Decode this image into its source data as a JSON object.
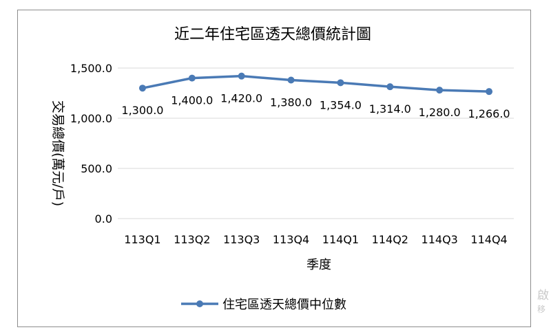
{
  "chart_data": {
    "type": "line",
    "title": "近二年住宅區透天總價統計圖",
    "xlabel": "季度",
    "ylabel": "交易總價(萬元/戶)",
    "categories": [
      "113Q1",
      "113Q2",
      "113Q3",
      "113Q4",
      "114Q1",
      "114Q2",
      "114Q3",
      "114Q4"
    ],
    "series": [
      {
        "name": "住宅區透天總價中位數",
        "values": [
          1300.0,
          1400.0,
          1420.0,
          1380.0,
          1354.0,
          1314.0,
          1280.0,
          1266.0
        ],
        "data_labels": [
          "1,300.0",
          "1,400.0",
          "1,420.0",
          "1,380.0",
          "1,354.0",
          "1,314.0",
          "1,280.0",
          "1,266.0"
        ]
      }
    ],
    "ylim": [
      0,
      1500
    ],
    "yticks": [
      "0.0",
      "500.0",
      "1,000.0",
      "1,500.0"
    ],
    "ytick_values": [
      0,
      500,
      1000,
      1500
    ],
    "grid": true,
    "legend_position": "bottom",
    "colors": {
      "line": "#4a7ab5",
      "grid": "#d9d9d9",
      "text": "#000000"
    }
  },
  "side_text": {
    "top": "啟",
    "bottom": "移"
  }
}
